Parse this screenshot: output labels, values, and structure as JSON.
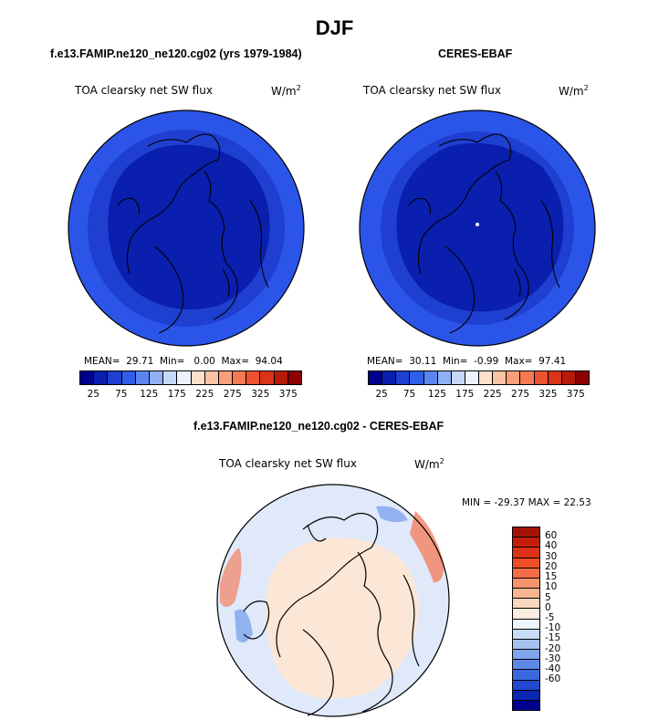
{
  "title": "DJF",
  "panels": {
    "left": {
      "title": "f.e13.FAMIP.ne120_ne120.cg02 (yrs 1979-1984)",
      "variable": "TOA clearsky net SW flux",
      "units": "W/m",
      "units_exp": "2",
      "mean_label": "MEAN=",
      "mean": "29.71",
      "min_label": "Min=",
      "min": "0.00",
      "max_label": "Max=",
      "max": "94.04"
    },
    "right": {
      "title": "CERES-EBAF",
      "variable": "TOA clearsky net SW flux",
      "units": "W/m",
      "units_exp": "2",
      "mean_label": "MEAN=",
      "mean": "30.11",
      "min_label": "Min=",
      "min": "-0.99",
      "max_label": "Max=",
      "max": "97.41"
    },
    "diff": {
      "title": "f.e13.FAMIP.ne120_ne120.cg02 - CERES-EBAF",
      "variable": "TOA clearsky net SW flux",
      "units": "W/m",
      "units_exp": "2",
      "minmax": "MIN = -29.37 MAX =  22.53"
    }
  },
  "abs_colorbar": {
    "colors": [
      "#00008b",
      "#0a1fae",
      "#1e3fd0",
      "#2f5fe8",
      "#5b86f0",
      "#8fb0f5",
      "#c6d8fa",
      "#eef2fc",
      "#fde0cc",
      "#fcc2a4",
      "#f9a07a",
      "#f57a52",
      "#ee5230",
      "#dc3218",
      "#b81a0a",
      "#8b0000"
    ],
    "tick_labels": [
      "25",
      "75",
      "125",
      "175",
      "225",
      "275",
      "325",
      "375"
    ]
  },
  "diff_colorbar": {
    "colors": [
      "#a31408",
      "#c41e0a",
      "#dc3215",
      "#ef4d27",
      "#f56d45",
      "#f7946b",
      "#f8b592",
      "#fad7bf",
      "#fcebdf",
      "#eef4fb",
      "#c9dcf5",
      "#a5c2f0",
      "#7ea6ec",
      "#5c89e8",
      "#3a68e0",
      "#2048d0",
      "#0b28b0",
      "#000090"
    ],
    "tick_labels": [
      "60",
      "40",
      "30",
      "20",
      "15",
      "10",
      "5",
      "0",
      "-5",
      "-10",
      "-15",
      "-20",
      "-30",
      "-40",
      "-60"
    ]
  },
  "map_colors": {
    "outer": "#2b55e8",
    "ring": "#1e3fd0",
    "inner": "#0a1fae",
    "diff_base": "#dfe9fa",
    "diff_warm": "#fce7d6",
    "diff_red": "#f3876a",
    "diff_blue": "#7ea2ec"
  }
}
